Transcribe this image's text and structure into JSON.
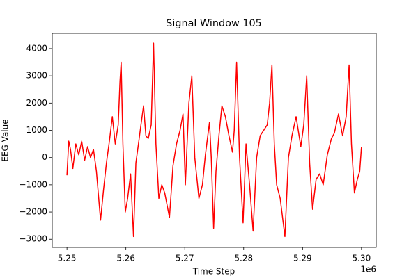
{
  "chart_data": {
    "type": "line",
    "title": "Signal Window 105",
    "x_label": "Time Step",
    "y_label": "EEG Value",
    "x_offset_label": "1e6",
    "xlim": [
      5247500,
      5302500
    ],
    "ylim": [
      -3300,
      4560
    ],
    "xticks": [
      {
        "value": 5250000,
        "label": "5.25"
      },
      {
        "value": 5260000,
        "label": "5.26"
      },
      {
        "value": 5270000,
        "label": "5.27"
      },
      {
        "value": 5280000,
        "label": "5.28"
      },
      {
        "value": 5290000,
        "label": "5.29"
      },
      {
        "value": 5300000,
        "label": "5.30"
      }
    ],
    "yticks": [
      {
        "value": -3000,
        "label": "−3000"
      },
      {
        "value": -2000,
        "label": "−2000"
      },
      {
        "value": -1000,
        "label": "−1000"
      },
      0,
      1000,
      2000,
      3000,
      4000
    ],
    "grid": false,
    "x": [
      5250000,
      5250300,
      5250600,
      5251000,
      5251500,
      5252000,
      5252500,
      5253000,
      5253500,
      5254000,
      5254500,
      5255000,
      5255700,
      5256200,
      5256700,
      5257200,
      5257700,
      5258200,
      5258700,
      5259000,
      5259200,
      5259500,
      5259900,
      5260300,
      5260800,
      5261300,
      5261700,
      5262200,
      5262500,
      5263000,
      5263400,
      5263800,
      5264300,
      5264700,
      5265100,
      5265600,
      5266100,
      5266600,
      5267400,
      5268000,
      5268600,
      5269200,
      5269700,
      5270100,
      5270700,
      5271200,
      5271700,
      5272400,
      5273000,
      5273500,
      5274200,
      5274500,
      5274900,
      5275300,
      5275800,
      5276300,
      5276900,
      5277500,
      5278100,
      5278400,
      5278800,
      5279300,
      5279900,
      5280400,
      5281000,
      5281600,
      5282200,
      5282800,
      5283400,
      5284000,
      5284400,
      5284800,
      5285200,
      5285600,
      5286200,
      5287000,
      5287600,
      5288200,
      5288900,
      5289700,
      5290200,
      5290700,
      5291200,
      5291700,
      5292300,
      5292900,
      5293500,
      5294200,
      5294900,
      5295400,
      5296100,
      5296800,
      5297400,
      5297900,
      5298300,
      5298800,
      5299300,
      5299700,
      5300000
    ],
    "series": [
      {
        "color": "#ff0000",
        "values": [
          -650,
          600,
          300,
          -400,
          500,
          100,
          600,
          -100,
          400,
          0,
          300,
          -500,
          -2300,
          -1200,
          -200,
          600,
          1500,
          500,
          1200,
          2800,
          3500,
          500,
          -2000,
          -1500,
          -600,
          -2900,
          -200,
          600,
          1100,
          1900,
          800,
          700,
          1200,
          4200,
          500,
          -1500,
          -1000,
          -1300,
          -2200,
          -300,
          500,
          1000,
          1600,
          -1000,
          2000,
          3000,
          0,
          -1500,
          -1000,
          100,
          1300,
          0,
          -2600,
          -500,
          800,
          1900,
          1500,
          800,
          200,
          1000,
          3500,
          0,
          -2400,
          500,
          -1000,
          -2700,
          0,
          800,
          1000,
          1200,
          2000,
          3400,
          500,
          -1000,
          -1500,
          -2900,
          0,
          800,
          1500,
          400,
          1200,
          3000,
          -200,
          -1900,
          -800,
          -600,
          -1000,
          100,
          700,
          900,
          1600,
          800,
          1500,
          3400,
          500,
          -1300,
          -800,
          -500,
          400
        ]
      }
    ]
  }
}
